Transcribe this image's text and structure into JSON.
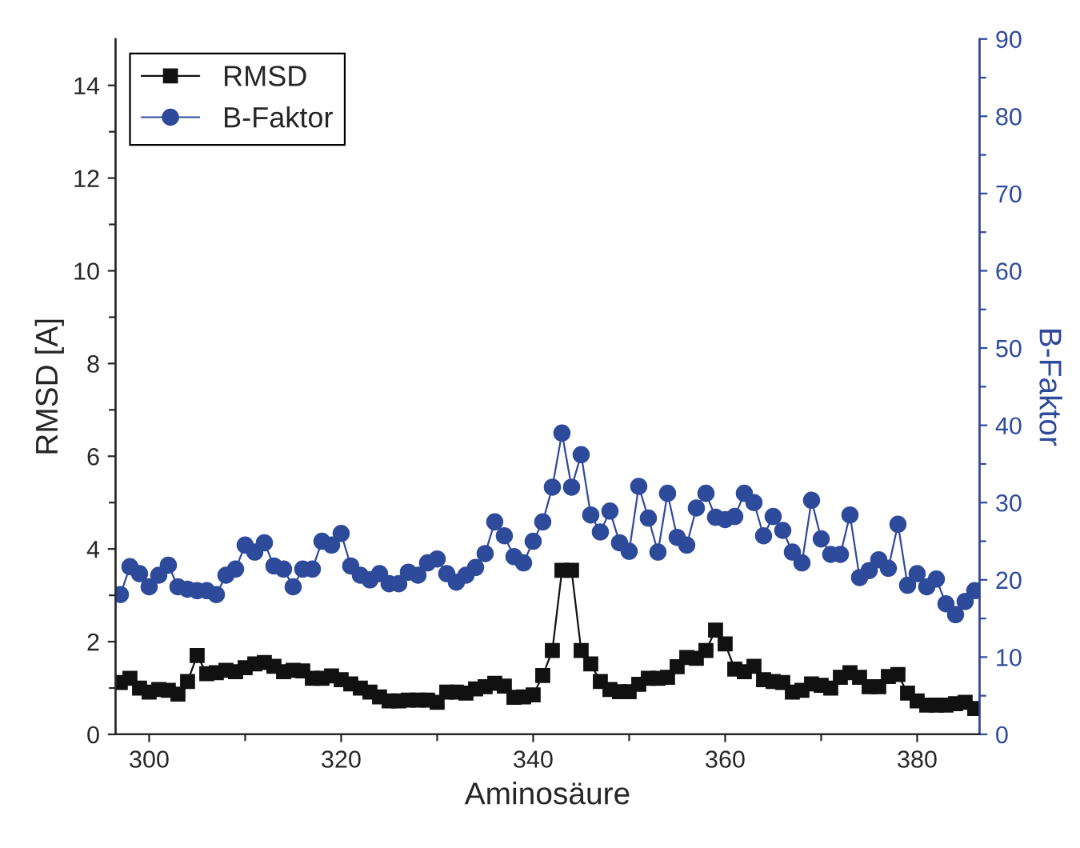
{
  "chart_data": {
    "type": "line",
    "xlabel": "Aminosäure",
    "ylabel": "RMSD [A]",
    "y2label": "B-Faktor",
    "x": [
      297,
      298,
      299,
      300,
      301,
      302,
      303,
      304,
      305,
      306,
      307,
      308,
      309,
      310,
      311,
      312,
      313,
      314,
      315,
      316,
      317,
      318,
      319,
      320,
      321,
      322,
      323,
      324,
      325,
      326,
      327,
      328,
      329,
      330,
      331,
      332,
      333,
      334,
      335,
      336,
      337,
      338,
      339,
      340,
      341,
      342,
      343,
      344,
      345,
      346,
      347,
      348,
      349,
      350,
      351,
      352,
      353,
      354,
      355,
      356,
      357,
      358,
      359,
      360,
      361,
      362,
      363,
      364,
      365,
      366,
      367,
      368,
      369,
      370,
      371,
      372,
      373,
      374,
      375,
      376,
      377,
      378,
      379,
      380,
      381,
      382,
      383,
      384,
      385,
      386
    ],
    "series": [
      {
        "name": "RMSD",
        "color": "#111111",
        "marker": "square",
        "values": [
          1.12,
          1.21,
          1.0,
          0.91,
          0.97,
          0.95,
          0.87,
          1.14,
          1.7,
          1.31,
          1.33,
          1.38,
          1.35,
          1.44,
          1.52,
          1.55,
          1.47,
          1.35,
          1.38,
          1.37,
          1.21,
          1.21,
          1.26,
          1.18,
          1.09,
          1.0,
          0.91,
          0.81,
          0.72,
          0.72,
          0.74,
          0.74,
          0.74,
          0.69,
          0.91,
          0.91,
          0.89,
          0.98,
          1.03,
          1.1,
          1.04,
          0.8,
          0.81,
          0.85,
          1.27,
          1.81,
          3.54,
          3.54,
          1.81,
          1.52,
          1.14,
          0.97,
          0.92,
          0.92,
          1.08,
          1.21,
          1.21,
          1.23,
          1.46,
          1.66,
          1.64,
          1.81,
          2.25,
          1.95,
          1.41,
          1.35,
          1.47,
          1.18,
          1.14,
          1.12,
          0.91,
          0.95,
          1.09,
          1.06,
          1.0,
          1.23,
          1.33,
          1.23,
          1.03,
          1.03,
          1.25,
          1.29,
          0.89,
          0.72,
          0.63,
          0.63,
          0.63,
          0.66,
          0.69,
          0.56
        ]
      },
      {
        "name": "B-Faktor",
        "color": "#2e4a9a",
        "marker": "circle",
        "axis": "y2",
        "values": [
          18.1,
          21.7,
          20.8,
          19.1,
          20.6,
          21.9,
          19.1,
          18.8,
          18.6,
          18.6,
          18.1,
          20.6,
          21.4,
          24.5,
          23.6,
          24.8,
          21.8,
          21.4,
          19.1,
          21.4,
          21.4,
          25.0,
          24.5,
          26.0,
          21.8,
          20.6,
          20.0,
          20.8,
          19.5,
          19.5,
          21.0,
          20.6,
          22.2,
          22.7,
          20.8,
          19.7,
          20.6,
          21.6,
          23.4,
          27.5,
          25.7,
          23.0,
          22.2,
          25.0,
          27.5,
          32.0,
          39.0,
          32.0,
          36.2,
          28.4,
          26.2,
          28.9,
          24.8,
          23.7,
          32.1,
          28.0,
          23.6,
          31.2,
          25.5,
          24.5,
          29.3,
          31.2,
          28.1,
          27.8,
          28.2,
          31.2,
          30.0,
          25.7,
          28.2,
          26.4,
          23.6,
          22.2,
          30.3,
          25.3,
          23.3,
          23.3,
          28.4,
          20.3,
          21.2,
          22.6,
          21.5,
          27.2,
          19.3,
          20.8,
          19.1,
          20.1,
          16.9,
          15.5,
          17.2,
          18.6
        ]
      }
    ],
    "xlim": [
      296.5,
      386.5
    ],
    "xticks": [
      300,
      {
        "value": 310,
        "label": null
      },
      320,
      {
        "value": 330,
        "label": null
      },
      340,
      {
        "value": 350,
        "label": null
      },
      360,
      {
        "value": 370,
        "label": null
      },
      380
    ],
    "ylim": [
      0,
      15
    ],
    "yticks": [
      0,
      {
        "value": 1,
        "label": null
      },
      2,
      {
        "value": 3,
        "label": null
      },
      4,
      {
        "value": 5,
        "label": null
      },
      6,
      {
        "value": 7,
        "label": null
      },
      8,
      {
        "value": 9,
        "label": null
      },
      10,
      {
        "value": 11,
        "label": null
      },
      12,
      {
        "value": 13,
        "label": null
      },
      14
    ],
    "y2lim": [
      0,
      90
    ],
    "y2ticks": [
      0,
      {
        "value": 5,
        "label": null
      },
      10,
      {
        "value": 15,
        "label": null
      },
      20,
      {
        "value": 25,
        "label": null
      },
      30,
      {
        "value": 35,
        "label": null
      },
      40,
      {
        "value": 45,
        "label": null
      },
      50,
      {
        "value": 55,
        "label": null
      },
      60,
      {
        "value": 65,
        "label": null
      },
      70,
      {
        "value": 75,
        "label": null
      },
      80,
      {
        "value": 85,
        "label": null
      },
      90
    ],
    "legend": "top left",
    "grid": false,
    "line_style": "solid"
  }
}
